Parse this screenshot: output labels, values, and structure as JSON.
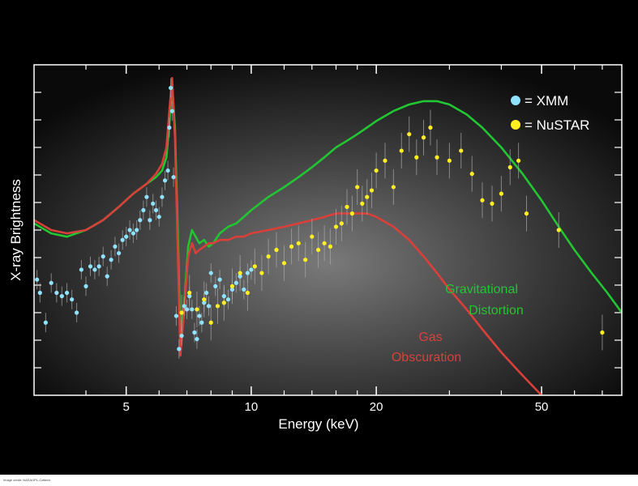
{
  "chart_data": {
    "type": "scatter",
    "xlabel": "Energy (keV)",
    "ylabel": "X-ray Brightness",
    "xscale": "log",
    "xlim": [
      3,
      78
    ],
    "ylim": [
      0,
      1
    ],
    "x_ticks": [
      5,
      10,
      20,
      50
    ],
    "grid": false,
    "legend_position": "top-right",
    "colors": {
      "xmm": "#8fe3ff",
      "nustar": "#ffee22",
      "gravitational": "#22c532",
      "gas": "#d9403a",
      "frame": "#ffffff"
    },
    "legend": [
      {
        "label": "= XMM",
        "color": "#8fe3ff"
      },
      {
        "label": "= NuSTAR",
        "color": "#ffee22"
      }
    ],
    "annotations": [
      {
        "lines": [
          "Gravitational",
          "Distortion"
        ],
        "color": "#22c532"
      },
      {
        "lines": [
          "Gas",
          "Obscuration"
        ],
        "color": "#d9403a"
      }
    ],
    "series": [
      {
        "name": "XMM",
        "style": "points",
        "x": [
          3.05,
          3.1,
          3.2,
          3.3,
          3.4,
          3.5,
          3.6,
          3.7,
          3.8,
          3.9,
          4.0,
          4.1,
          4.2,
          4.3,
          4.4,
          4.5,
          4.6,
          4.7,
          4.8,
          4.9,
          5.0,
          5.1,
          5.2,
          5.3,
          5.4,
          5.5,
          5.6,
          5.7,
          5.8,
          5.9,
          6.0,
          6.1,
          6.2,
          6.3,
          6.35,
          6.4,
          6.45,
          6.5,
          6.6,
          6.7,
          6.8,
          6.9,
          7.0,
          7.1,
          7.2,
          7.3,
          7.4,
          7.5,
          7.6,
          7.7,
          7.8,
          7.9,
          8.0,
          8.2,
          8.4,
          8.6,
          8.8,
          9.0,
          9.2,
          9.4,
          9.6,
          9.8,
          10.0
        ],
        "y": [
          0.35,
          0.31,
          0.22,
          0.34,
          0.31,
          0.3,
          0.31,
          0.29,
          0.25,
          0.38,
          0.33,
          0.39,
          0.38,
          0.39,
          0.42,
          0.36,
          0.41,
          0.45,
          0.43,
          0.47,
          0.48,
          0.5,
          0.49,
          0.5,
          0.53,
          0.56,
          0.6,
          0.53,
          0.58,
          0.56,
          0.54,
          0.6,
          0.65,
          0.68,
          0.81,
          0.93,
          0.86,
          0.66,
          0.24,
          0.14,
          0.18,
          0.27,
          0.26,
          0.3,
          0.26,
          0.19,
          0.17,
          0.24,
          0.22,
          0.28,
          0.31,
          0.27,
          0.37,
          0.33,
          0.35,
          0.3,
          0.29,
          0.32,
          0.34,
          0.36,
          0.32,
          0.37,
          0.38
        ],
        "color": "#8fe3ff"
      },
      {
        "name": "NuSTAR",
        "style": "points",
        "x": [
          6.8,
          7.1,
          7.4,
          7.7,
          8.0,
          8.3,
          8.6,
          9.0,
          9.4,
          9.8,
          10.2,
          10.6,
          11.0,
          11.5,
          12.0,
          12.5,
          13.0,
          13.5,
          14.0,
          14.5,
          15.0,
          15.5,
          16.0,
          16.5,
          17.0,
          17.5,
          18.0,
          18.5,
          19.0,
          19.5,
          20.0,
          21.0,
          22.0,
          23.0,
          24.0,
          25.0,
          26.0,
          27.0,
          28.0,
          30.0,
          32.0,
          34.0,
          36.0,
          38.0,
          40.0,
          42.0,
          44.0,
          46.0,
          55.0,
          70.0
        ],
        "y": [
          0.25,
          0.31,
          0.26,
          0.29,
          0.22,
          0.27,
          0.28,
          0.33,
          0.37,
          0.31,
          0.39,
          0.37,
          0.42,
          0.44,
          0.4,
          0.45,
          0.46,
          0.41,
          0.48,
          0.44,
          0.46,
          0.45,
          0.51,
          0.52,
          0.57,
          0.55,
          0.63,
          0.58,
          0.6,
          0.62,
          0.68,
          0.71,
          0.63,
          0.74,
          0.79,
          0.72,
          0.78,
          0.81,
          0.72,
          0.71,
          0.74,
          0.67,
          0.59,
          0.58,
          0.61,
          0.69,
          0.71,
          0.55,
          0.5,
          0.19
        ],
        "color": "#ffee22"
      },
      {
        "name": "Gravitational Distortion",
        "style": "line",
        "x": [
          3.0,
          3.3,
          3.6,
          4.0,
          4.4,
          4.8,
          5.2,
          5.6,
          5.9,
          6.1,
          6.25,
          6.35,
          6.45,
          6.55,
          6.65,
          6.75,
          6.9,
          7.05,
          7.2,
          7.35,
          7.5,
          7.7,
          7.9,
          8.1,
          8.4,
          8.8,
          9.2,
          9.6,
          10,
          11,
          12,
          13,
          14,
          15,
          16,
          17,
          18,
          19,
          20,
          22,
          24,
          26,
          28,
          30,
          33,
          36,
          40,
          45,
          50,
          55,
          60,
          66,
          72,
          78
        ],
        "y": [
          0.52,
          0.49,
          0.48,
          0.5,
          0.53,
          0.57,
          0.61,
          0.64,
          0.66,
          0.68,
          0.72,
          0.82,
          0.94,
          0.81,
          0.52,
          0.18,
          0.28,
          0.45,
          0.5,
          0.48,
          0.46,
          0.47,
          0.45,
          0.46,
          0.49,
          0.51,
          0.52,
          0.54,
          0.56,
          0.6,
          0.63,
          0.66,
          0.69,
          0.72,
          0.75,
          0.77,
          0.79,
          0.81,
          0.83,
          0.86,
          0.88,
          0.89,
          0.89,
          0.88,
          0.85,
          0.81,
          0.75,
          0.67,
          0.59,
          0.51,
          0.44,
          0.37,
          0.31,
          0.25
        ],
        "color": "#22c532"
      },
      {
        "name": "Gas Obscuration",
        "style": "line",
        "x": [
          3.0,
          3.3,
          3.6,
          4.0,
          4.4,
          4.8,
          5.2,
          5.6,
          5.9,
          6.1,
          6.25,
          6.35,
          6.45,
          6.55,
          6.65,
          6.75,
          6.9,
          7.05,
          7.2,
          7.35,
          7.5,
          7.7,
          7.9,
          8.1,
          8.4,
          8.8,
          9.2,
          9.6,
          10,
          11,
          12,
          13,
          14,
          15,
          16,
          17,
          18,
          19,
          20,
          22,
          24,
          26,
          28,
          30,
          33,
          36,
          40,
          45,
          50
        ],
        "y": [
          0.53,
          0.5,
          0.49,
          0.5,
          0.53,
          0.57,
          0.61,
          0.64,
          0.67,
          0.7,
          0.75,
          0.86,
          0.96,
          0.78,
          0.46,
          0.12,
          0.26,
          0.42,
          0.46,
          0.43,
          0.44,
          0.45,
          0.46,
          0.46,
          0.47,
          0.47,
          0.48,
          0.48,
          0.49,
          0.5,
          0.51,
          0.52,
          0.53,
          0.54,
          0.55,
          0.55,
          0.55,
          0.55,
          0.54,
          0.51,
          0.47,
          0.42,
          0.37,
          0.32,
          0.26,
          0.2,
          0.13,
          0.06,
          0.0
        ],
        "color": "#d9403a"
      }
    ]
  },
  "footer": {
    "left": "Image credit: NASA/JPL-Caltech",
    "center": "",
    "right": ""
  }
}
